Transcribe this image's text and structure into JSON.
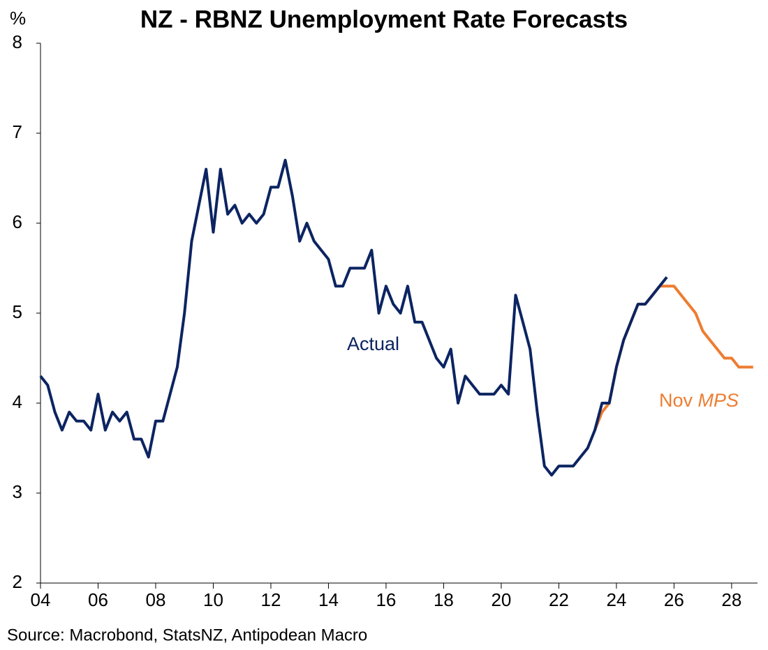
{
  "chart_data": {
    "type": "line",
    "title": "NZ - RBNZ Unemployment Rate Forecasts",
    "y_label": "%",
    "source": "Source: Macrobond, StatsNZ, Antipodean Macro",
    "annotations": [
      "Actual",
      "Nov",
      "MPS"
    ],
    "xlim": [
      2004,
      2028.9
    ],
    "xticks": [
      {
        "value": 2004,
        "label": "04"
      },
      {
        "value": 2006,
        "label": "06"
      },
      {
        "value": 2008,
        "label": "08"
      },
      {
        "value": 2010,
        "label": "10"
      },
      {
        "value": 2012,
        "label": "12"
      },
      {
        "value": 2014,
        "label": "14"
      },
      {
        "value": 2016,
        "label": "16"
      },
      {
        "value": 2018,
        "label": "18"
      },
      {
        "value": 2020,
        "label": "20"
      },
      {
        "value": 2022,
        "label": "22"
      },
      {
        "value": 2024,
        "label": "24"
      },
      {
        "value": 2026,
        "label": "26"
      },
      {
        "value": 2028,
        "label": "28"
      }
    ],
    "ylim": [
      2,
      8
    ],
    "yticks": [
      2,
      3,
      4,
      5,
      6,
      7,
      8
    ],
    "series": [
      {
        "name": "Nov MPS",
        "color": "#ed7d31",
        "x": [
          2023.25,
          2023.5,
          2023.75,
          2024,
          2024.25,
          2024.5,
          2024.75,
          2025,
          2025.25,
          2025.5,
          2025.75,
          2026,
          2026.25,
          2026.5,
          2026.75,
          2027,
          2027.25,
          2027.5,
          2027.75,
          2028,
          2028.25,
          2028.5,
          2028.75
        ],
        "values": [
          3.7,
          3.9,
          4.0,
          4.4,
          4.7,
          4.9,
          5.1,
          5.1,
          5.2,
          5.3,
          5.3,
          5.3,
          5.2,
          5.1,
          5.0,
          4.8,
          4.7,
          4.6,
          4.5,
          4.5,
          4.4,
          4.4,
          4.4
        ]
      },
      {
        "name": "Actual",
        "color": "#0c2461",
        "x": [
          2004,
          2004.25,
          2004.5,
          2004.75,
          2005,
          2005.25,
          2005.5,
          2005.75,
          2006,
          2006.25,
          2006.5,
          2006.75,
          2007,
          2007.25,
          2007.5,
          2007.75,
          2008,
          2008.25,
          2008.5,
          2008.75,
          2009,
          2009.25,
          2009.5,
          2009.75,
          2010,
          2010.25,
          2010.5,
          2010.75,
          2011,
          2011.25,
          2011.5,
          2011.75,
          2012,
          2012.25,
          2012.5,
          2012.75,
          2013,
          2013.25,
          2013.5,
          2013.75,
          2014,
          2014.25,
          2014.5,
          2014.75,
          2015,
          2015.25,
          2015.5,
          2015.75,
          2016,
          2016.25,
          2016.5,
          2016.75,
          2017,
          2017.25,
          2017.5,
          2017.75,
          2018,
          2018.25,
          2018.5,
          2018.75,
          2019,
          2019.25,
          2019.5,
          2019.75,
          2020,
          2020.25,
          2020.5,
          2020.75,
          2021,
          2021.25,
          2021.5,
          2021.75,
          2022,
          2022.25,
          2022.5,
          2022.75,
          2023,
          2023.25,
          2023.5,
          2023.75,
          2024,
          2024.25,
          2024.5,
          2024.75,
          2025,
          2025.25,
          2025.5,
          2025.75
        ],
        "values": [
          4.3,
          4.2,
          3.9,
          3.7,
          3.9,
          3.8,
          3.8,
          3.7,
          4.1,
          3.7,
          3.9,
          3.8,
          3.9,
          3.6,
          3.6,
          3.4,
          3.8,
          3.8,
          4.1,
          4.4,
          5.0,
          5.8,
          6.2,
          6.6,
          5.9,
          6.6,
          6.1,
          6.2,
          6.0,
          6.1,
          6.0,
          6.1,
          6.4,
          6.4,
          6.7,
          6.3,
          5.8,
          6.0,
          5.8,
          5.7,
          5.6,
          5.3,
          5.3,
          5.5,
          5.5,
          5.5,
          5.7,
          5.0,
          5.3,
          5.1,
          5.0,
          5.3,
          4.9,
          4.9,
          4.7,
          4.5,
          4.4,
          4.6,
          4.0,
          4.3,
          4.2,
          4.1,
          4.1,
          4.1,
          4.2,
          4.1,
          5.2,
          4.9,
          4.6,
          3.9,
          3.3,
          3.2,
          3.3,
          3.3,
          3.3,
          3.4,
          3.5,
          3.7,
          4.0,
          4.0,
          4.4,
          4.7,
          4.9,
          5.1,
          5.1,
          5.2,
          5.3,
          5.4
        ]
      }
    ]
  }
}
